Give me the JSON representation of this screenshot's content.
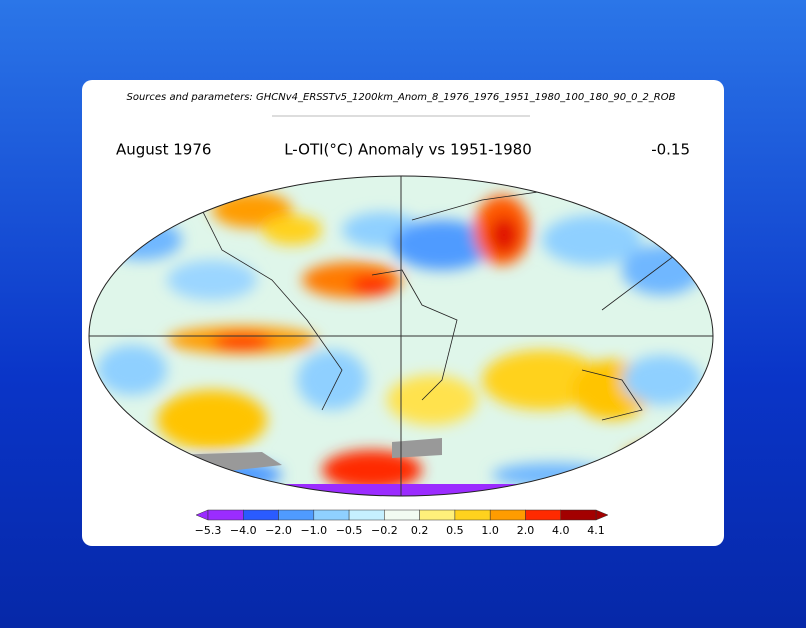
{
  "header": {
    "sources_label": "Sources and parameters:",
    "sources": "GHCNv4_ERSSTv5_1200km_Anom_8_1976_1976_1951_1980_100_180_90_0_2_ROB",
    "date": "August 1976",
    "title": "L-OTI(°C) Anomaly vs 1951-1980",
    "global_mean": "-0.15"
  },
  "colorbar": {
    "labels": [
      "−5.3",
      "−4.0",
      "−2.0",
      "−1.0",
      "−0.5",
      "−0.2",
      "0.2",
      "0.5",
      "1.0",
      "2.0",
      "4.0",
      "4.1"
    ],
    "colors": [
      "#9b2cff",
      "#2a5bff",
      "#4f9bff",
      "#8fd0ff",
      "#c6f0ff",
      "#f2fbf2",
      "#fff07a",
      "#ffd21e",
      "#ff9c00",
      "#ff2a00",
      "#a30000"
    ]
  }
}
